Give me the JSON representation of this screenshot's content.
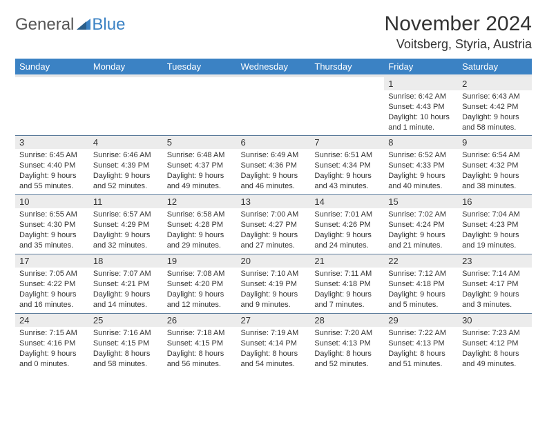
{
  "logo": {
    "text_gray": "General",
    "text_blue": "Blue"
  },
  "title": "November 2024",
  "location": "Voitsberg, Styria, Austria",
  "colors": {
    "header_bg": "#3b82c4",
    "header_text": "#ffffff",
    "daynum_bg": "#ececec",
    "rule": "#5a7a9a",
    "body_text": "#333333",
    "page_bg": "#ffffff"
  },
  "fonts": {
    "title_size": 30,
    "location_size": 18,
    "dayhead_size": 13,
    "cell_size": 11
  },
  "days_of_week": [
    "Sunday",
    "Monday",
    "Tuesday",
    "Wednesday",
    "Thursday",
    "Friday",
    "Saturday"
  ],
  "weeks": [
    [
      null,
      null,
      null,
      null,
      null,
      {
        "n": "1",
        "sunrise": "6:42 AM",
        "sunset": "4:43 PM",
        "daylight": "10 hours and 1 minute."
      },
      {
        "n": "2",
        "sunrise": "6:43 AM",
        "sunset": "4:42 PM",
        "daylight": "9 hours and 58 minutes."
      }
    ],
    [
      {
        "n": "3",
        "sunrise": "6:45 AM",
        "sunset": "4:40 PM",
        "daylight": "9 hours and 55 minutes."
      },
      {
        "n": "4",
        "sunrise": "6:46 AM",
        "sunset": "4:39 PM",
        "daylight": "9 hours and 52 minutes."
      },
      {
        "n": "5",
        "sunrise": "6:48 AM",
        "sunset": "4:37 PM",
        "daylight": "9 hours and 49 minutes."
      },
      {
        "n": "6",
        "sunrise": "6:49 AM",
        "sunset": "4:36 PM",
        "daylight": "9 hours and 46 minutes."
      },
      {
        "n": "7",
        "sunrise": "6:51 AM",
        "sunset": "4:34 PM",
        "daylight": "9 hours and 43 minutes."
      },
      {
        "n": "8",
        "sunrise": "6:52 AM",
        "sunset": "4:33 PM",
        "daylight": "9 hours and 40 minutes."
      },
      {
        "n": "9",
        "sunrise": "6:54 AM",
        "sunset": "4:32 PM",
        "daylight": "9 hours and 38 minutes."
      }
    ],
    [
      {
        "n": "10",
        "sunrise": "6:55 AM",
        "sunset": "4:30 PM",
        "daylight": "9 hours and 35 minutes."
      },
      {
        "n": "11",
        "sunrise": "6:57 AM",
        "sunset": "4:29 PM",
        "daylight": "9 hours and 32 minutes."
      },
      {
        "n": "12",
        "sunrise": "6:58 AM",
        "sunset": "4:28 PM",
        "daylight": "9 hours and 29 minutes."
      },
      {
        "n": "13",
        "sunrise": "7:00 AM",
        "sunset": "4:27 PM",
        "daylight": "9 hours and 27 minutes."
      },
      {
        "n": "14",
        "sunrise": "7:01 AM",
        "sunset": "4:26 PM",
        "daylight": "9 hours and 24 minutes."
      },
      {
        "n": "15",
        "sunrise": "7:02 AM",
        "sunset": "4:24 PM",
        "daylight": "9 hours and 21 minutes."
      },
      {
        "n": "16",
        "sunrise": "7:04 AM",
        "sunset": "4:23 PM",
        "daylight": "9 hours and 19 minutes."
      }
    ],
    [
      {
        "n": "17",
        "sunrise": "7:05 AM",
        "sunset": "4:22 PM",
        "daylight": "9 hours and 16 minutes."
      },
      {
        "n": "18",
        "sunrise": "7:07 AM",
        "sunset": "4:21 PM",
        "daylight": "9 hours and 14 minutes."
      },
      {
        "n": "19",
        "sunrise": "7:08 AM",
        "sunset": "4:20 PM",
        "daylight": "9 hours and 12 minutes."
      },
      {
        "n": "20",
        "sunrise": "7:10 AM",
        "sunset": "4:19 PM",
        "daylight": "9 hours and 9 minutes."
      },
      {
        "n": "21",
        "sunrise": "7:11 AM",
        "sunset": "4:18 PM",
        "daylight": "9 hours and 7 minutes."
      },
      {
        "n": "22",
        "sunrise": "7:12 AM",
        "sunset": "4:18 PM",
        "daylight": "9 hours and 5 minutes."
      },
      {
        "n": "23",
        "sunrise": "7:14 AM",
        "sunset": "4:17 PM",
        "daylight": "9 hours and 3 minutes."
      }
    ],
    [
      {
        "n": "24",
        "sunrise": "7:15 AM",
        "sunset": "4:16 PM",
        "daylight": "9 hours and 0 minutes."
      },
      {
        "n": "25",
        "sunrise": "7:16 AM",
        "sunset": "4:15 PM",
        "daylight": "8 hours and 58 minutes."
      },
      {
        "n": "26",
        "sunrise": "7:18 AM",
        "sunset": "4:15 PM",
        "daylight": "8 hours and 56 minutes."
      },
      {
        "n": "27",
        "sunrise": "7:19 AM",
        "sunset": "4:14 PM",
        "daylight": "8 hours and 54 minutes."
      },
      {
        "n": "28",
        "sunrise": "7:20 AM",
        "sunset": "4:13 PM",
        "daylight": "8 hours and 52 minutes."
      },
      {
        "n": "29",
        "sunrise": "7:22 AM",
        "sunset": "4:13 PM",
        "daylight": "8 hours and 51 minutes."
      },
      {
        "n": "30",
        "sunrise": "7:23 AM",
        "sunset": "4:12 PM",
        "daylight": "8 hours and 49 minutes."
      }
    ]
  ]
}
